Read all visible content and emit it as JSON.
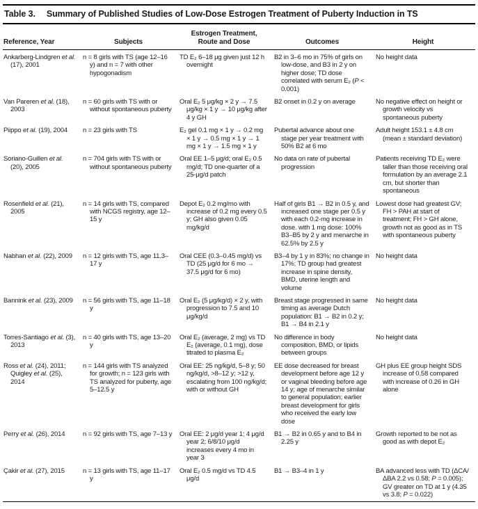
{
  "title": {
    "label": "Table 3.",
    "text": "Summary of Published Studies of Low-Dose Estrogen Treatment of Puberty Induction in TS"
  },
  "columns": {
    "reference": "Reference, Year",
    "subjects": "Subjects",
    "treatment": "Estrogen Treatment,\nRoute and Dose",
    "outcomes": "Outcomes",
    "height": "Height"
  },
  "rows": [
    {
      "reference": "Ankarberg-Lindgren et al. (17), 2001",
      "subjects": "n = 8 girls with TS (age 12–16 y) and n = 7 with other hypogonadism",
      "treatment": "TD E₂ 6–18 μg given just 12 h overnight",
      "outcomes": "B2 in 3–6 mo in 75% of girls on low-dose, and B3 in 2 y on higher dose; TD dose correlated with serum E₂ (P < 0.001)",
      "height": "No height data"
    },
    {
      "reference": "Van Pareren et al. (18), 2003",
      "subjects": "n = 60 girls with TS with or without spontaneous puberty",
      "treatment": "Oral E₂ 5 μg/kg × 2 y → 7.5 μg/kg × 1 y → 10 μg/kg after 4 y GH",
      "outcomes": "B2 onset in 0.2 y on average",
      "height": "No negative effect on height or growth velocity vs spontaneous puberty"
    },
    {
      "reference": "Piippo et al. (19), 2004",
      "subjects": "n = 23 girls with TS",
      "treatment": "E₂ gel 0.1 mg × 1 y → 0.2 mg × 1 y → 0.5 mg × 1 y → 1 mg × 1 y → 1.5 mg × 1 y",
      "outcomes": "Pubertal advance about one stage per year treatment with 50% B2 at 6 mo",
      "height": "Adult height 153.1 ± 4.8 cm (mean ± standard deviation)"
    },
    {
      "reference": "Soriano-Guillen et al. (20), 2005",
      "subjects": "n = 704 girls with TS with or without spontaneous puberty",
      "treatment": "Oral EE 1–5 μg/d; oral E₂ 0.5 mg/d; TD one-quarter of a 25-μg/d patch",
      "outcomes": "No data on rate of pubertal progression",
      "height": "Patients receiving TD E₂ were taller than those receiving oral formulation by an average 2.1 cm, but shorter than spontaneous"
    },
    {
      "reference": "Rosenfield et al. (21), 2005",
      "subjects": "n = 14 girls with TS, compared with NCGS registry, age 12–15 y",
      "treatment": "Depot E₂ 0.2 mg/mo with increase of 0.2 mg every 0.5 y; GH also given 0.05 mg/kg/d",
      "outcomes": "Half of girls B1 → B2 in 0.5 y, and increased one stage per 0.5 y with each 0.2-mg increase in dose. with 1 mg dose: 100% B3–B5 by 2 y and menarche in 62.5% by 2.5 y",
      "height": "Lowest dose had greatest GV; FH > PAH at start of treatment; FH > GH alone, growth not as good as in TS with spontaneous puberty"
    },
    {
      "reference": "Nabhan et al. (22), 2009",
      "subjects": "n = 12 girls with TS, age 11.3–17 y",
      "treatment": "Oral CEE (0.3–0.45 mg/d) vs TD (25 μg/d for 6 mo → 37.5 μg/d for 6 mo)",
      "outcomes": "B3–4 by 1 y in 83%; no change in 17%; TD group had greatest increase in spine density, BMD, uterine length and volume",
      "height": "No height data"
    },
    {
      "reference": "Bannink et al. (23), 2009",
      "subjects": "n = 56 girls with TS, age 11–18 y",
      "treatment": "Oral E₂ (5 μg/kg/d) × 2 y, with progression to 7.5 and 10 μg/kg/d",
      "outcomes": "Breast stage progressed in same timing as average Dutch population: B1 → B2 in 0.2 y; B1 → B4 in 2.1 y",
      "height": "No height data"
    },
    {
      "reference": "Torres-Santiago et al. (3), 2013",
      "subjects": "n = 40 girls with TS, age 13–20 y",
      "treatment": "Oral E₂ (average, 2 mg) vs TD E₂ (average, 0.1 mg), dose titrated to plasma E₂",
      "outcomes": "No difference in body composition, BMD, or lipids between groups",
      "height": "No height data"
    },
    {
      "reference": "Ross et al. (24), 2011; Quigley et al. (25), 2014",
      "subjects": "n = 144 girls with TS analyzed for growth; n = 123 girls with TS analyzed for puberty, age 5–12.5 y",
      "treatment": "Oral EE: 25 ng/kg/d, 5–8 y; 50 ng/kg/d, >8–12 y; >12 y, escalating from 100 ng/kg/d; with or without GH",
      "outcomes": "EE dose decreased for breast development before age 12 y or vaginal bleeding before age 14 y; age of menarche similar to general population; earlier breast development for girls who received the early low dose",
      "height": "GH plus EE group height SDS increase of 0.58 compared with increase of 0.26 in GH alone"
    },
    {
      "reference": "Perry et al. (26), 2014",
      "subjects": "n = 92 girls with TS, age 7–13 y",
      "treatment": "Oral EE: 2 μg/d year 1; 4 μg/d year 2; 6/8/10 μg/d increases every 4 mo in year 3",
      "outcomes": "B1 → B2 in 0.65 y and to B4 in 2.25 y",
      "height": "Growth reported to be not as good as with depot E₂"
    },
    {
      "reference": "Çakir et al. (27), 2015",
      "subjects": "n = 13 girls with TS, age 11–17 y",
      "treatment": "Oral E₂ 0.5 mg/d vs TD 4.5 μg/d",
      "outcomes": "B1 → B3–4 in 1 y",
      "height": "BA advanced less with TD (ΔCA/ΔBA 2.2 vs 0.58; P = 0.005); GV greater on TD at 1 y (4.35 vs 3.8; P = 0.022)"
    }
  ]
}
